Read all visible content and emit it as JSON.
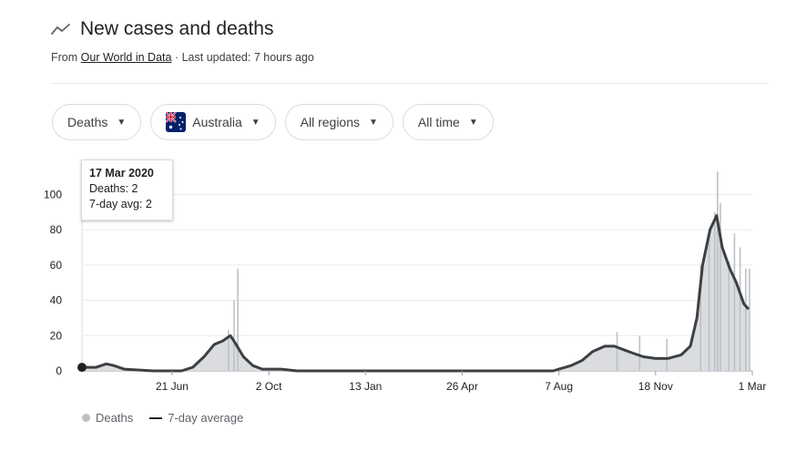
{
  "header": {
    "title": "New cases and deaths",
    "icon": "trending-line-icon",
    "source_prefix": "From",
    "source_link": "Our World in Data",
    "updated": "· Last updated: 7 hours ago"
  },
  "filters": [
    {
      "label": "Deaths"
    },
    {
      "label": "Australia",
      "icon": "australia-flag-icon"
    },
    {
      "label": "All regions"
    },
    {
      "label": "All time"
    }
  ],
  "tooltip": {
    "date": "17 Mar 2020",
    "deaths": "Deaths: 2",
    "avg": "7-day avg: 2"
  },
  "legend": {
    "deaths": "Deaths",
    "avg": "7-day average"
  },
  "colors": {
    "bars": "#bdc1c6",
    "area": "#dadce0",
    "line": "#3c4043",
    "grid": "#e8eaed",
    "text": "#202124"
  },
  "chart_data": {
    "type": "area",
    "title": "New cases and deaths",
    "ylim": [
      0,
      110
    ],
    "y_ticks": [
      0,
      20,
      40,
      60,
      80,
      100
    ],
    "x_ticks": [
      {
        "label": "21 Jun",
        "date": "2020-06-21"
      },
      {
        "label": "2 Oct",
        "date": "2020-10-02"
      },
      {
        "label": "13 Jan",
        "date": "2021-01-13"
      },
      {
        "label": "26 Apr",
        "date": "2021-04-26"
      },
      {
        "label": "7 Aug",
        "date": "2021-08-07"
      },
      {
        "label": "18 Nov",
        "date": "2021-11-18"
      },
      {
        "label": "1 Mar",
        "date": "2022-03-01"
      }
    ],
    "series": [
      {
        "name": "7-day average",
        "points": [
          [
            "2020-03-17",
            2
          ],
          [
            "2020-04-01",
            2
          ],
          [
            "2020-04-12",
            4
          ],
          [
            "2020-04-20",
            3
          ],
          [
            "2020-05-01",
            1
          ],
          [
            "2020-06-01",
            0
          ],
          [
            "2020-07-01",
            0
          ],
          [
            "2020-07-13",
            2
          ],
          [
            "2020-07-25",
            8
          ],
          [
            "2020-08-05",
            15
          ],
          [
            "2020-08-14",
            17
          ],
          [
            "2020-08-22",
            20
          ],
          [
            "2020-08-27",
            16
          ],
          [
            "2020-09-05",
            8
          ],
          [
            "2020-09-15",
            3
          ],
          [
            "2020-09-25",
            1
          ],
          [
            "2020-10-15",
            1
          ],
          [
            "2020-11-01",
            0
          ],
          [
            "2021-08-01",
            0
          ],
          [
            "2021-08-07",
            1
          ],
          [
            "2021-08-20",
            3
          ],
          [
            "2021-09-01",
            6
          ],
          [
            "2021-09-12",
            11
          ],
          [
            "2021-09-25",
            14
          ],
          [
            "2021-10-05",
            14
          ],
          [
            "2021-10-15",
            12
          ],
          [
            "2021-10-25",
            10
          ],
          [
            "2021-11-05",
            8
          ],
          [
            "2021-11-18",
            7
          ],
          [
            "2021-12-01",
            7
          ],
          [
            "2021-12-15",
            9
          ],
          [
            "2021-12-25",
            14
          ],
          [
            "2022-01-01",
            30
          ],
          [
            "2022-01-07",
            60
          ],
          [
            "2022-01-15",
            80
          ],
          [
            "2022-01-22",
            88
          ],
          [
            "2022-01-28",
            70
          ],
          [
            "2022-02-05",
            58
          ],
          [
            "2022-02-12",
            50
          ],
          [
            "2022-02-20",
            38
          ],
          [
            "2022-02-25",
            35
          ]
        ]
      },
      {
        "name": "Deaths",
        "spikes": [
          [
            "2020-08-20",
            23
          ],
          [
            "2020-08-26",
            40
          ],
          [
            "2020-08-30",
            58
          ],
          [
            "2021-10-08",
            22
          ],
          [
            "2021-11-01",
            20
          ],
          [
            "2021-11-30",
            18
          ],
          [
            "2022-01-05",
            60
          ],
          [
            "2022-01-14",
            80
          ],
          [
            "2022-01-20",
            90
          ],
          [
            "2022-01-23",
            113
          ],
          [
            "2022-01-26",
            95
          ],
          [
            "2022-02-04",
            62
          ],
          [
            "2022-02-10",
            78
          ],
          [
            "2022-02-16",
            70
          ],
          [
            "2022-02-22",
            58
          ],
          [
            "2022-02-26",
            58
          ]
        ]
      }
    ],
    "highlight_point": [
      "2020-03-17",
      2
    ]
  }
}
